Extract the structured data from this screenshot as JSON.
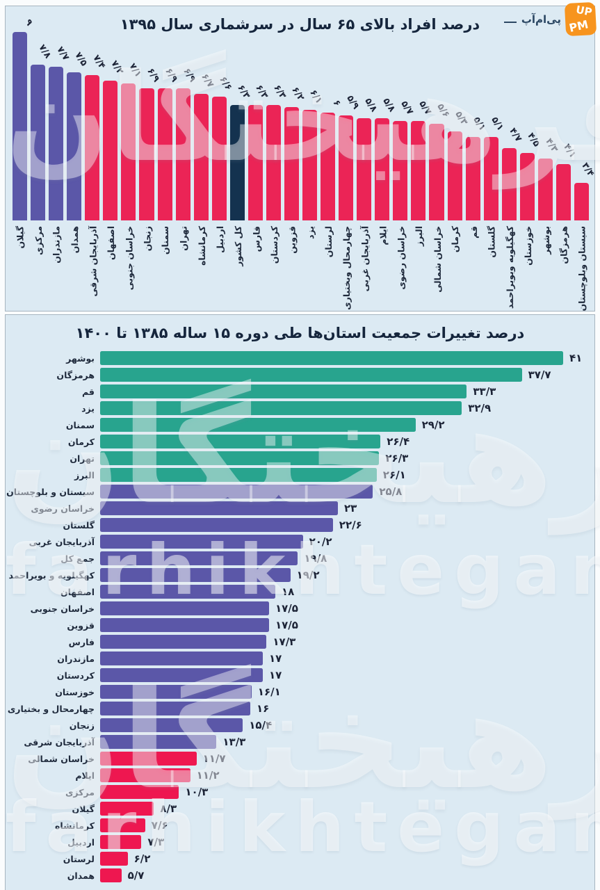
{
  "logo": {
    "badge_top": "UP",
    "badge_bottom": "PM",
    "brand": "پی‌ام‌آپ"
  },
  "watermark": {
    "fa": "فرهیختگان",
    "en": "farhikhtegan"
  },
  "colors": {
    "purple": "#5B57A8",
    "red_top": "#EB2456",
    "navy": "#14324F",
    "teal": "#28A48E",
    "red_bottom": "#EE1750",
    "panel_bg": "#dceaf3",
    "title_text": "#15253c"
  },
  "chart_data": [
    {
      "type": "bar",
      "orientation": "vertical",
      "title": "درصد افراد بالای ۶۵ سال در سرشماری سال ۱۳۹۵",
      "legend": "none",
      "grid": false,
      "axis_min": 2,
      "ylim": [
        2,
        9
      ],
      "categories": [
        "گیلان",
        "مرکزی",
        "مازندران",
        "همدان",
        "آذربایجان شرقی",
        "اصفهان",
        "خراسان جنوبی",
        "زنجان",
        "سمنان",
        "تهران",
        "کرمانشاه",
        "اردبیل",
        "کل کشور",
        "فارس",
        "کردستان",
        "قزوین",
        "یزد",
        "لرستان",
        "چهارمحال وبختیاری",
        "آذربایجان غربی",
        "ایلام",
        "خراسان رضوی",
        "البرز",
        "خراسان شمالی",
        "کرمان",
        "قم",
        "گلستان",
        "کهگیلویه وبویراحمد",
        "خوزستان",
        "بوشهر",
        "هرمزگان",
        "سیستان وبلوچستان"
      ],
      "values": [
        9,
        7.8,
        7.7,
        7.5,
        7.4,
        7.2,
        7.1,
        6.9,
        6.9,
        6.9,
        6.7,
        6.6,
        6.3,
        6.3,
        6.3,
        6.2,
        6.1,
        6,
        5.9,
        5.8,
        5.8,
        5.7,
        5.7,
        5.6,
        5.3,
        5.1,
        5.1,
        4.7,
        4.5,
        4.3,
        4.1,
        3.4
      ],
      "value_labels": [
        "۹",
        "۷/۸",
        "۷/۷",
        "۷/۵",
        "۷/۴",
        "۷/۲",
        "۷/۱",
        "۶/۹",
        "۶/۹",
        "۶/۹",
        "۶/۷",
        "۶/۶",
        "۶/۳",
        "۶/۳",
        "۶/۳",
        "۶/۲",
        "۶/۱",
        "۶",
        "۵/۹",
        "۵/۸",
        "۵/۸",
        "۵/۷",
        "۵/۷",
        "۵/۶",
        "۵/۳",
        "۵/۱",
        "۵/۱",
        "۴/۷",
        "۴/۵",
        "۴/۳",
        "۴/۱",
        "۳/۴"
      ],
      "bar_color_keys": [
        "purple",
        "purple",
        "purple",
        "purple",
        "red_top",
        "red_top",
        "red_top",
        "red_top",
        "red_top",
        "red_top",
        "red_top",
        "red_top",
        "navy",
        "red_top",
        "red_top",
        "red_top",
        "red_top",
        "red_top",
        "red_top",
        "red_top",
        "red_top",
        "red_top",
        "red_top",
        "red_top",
        "red_top",
        "red_top",
        "red_top",
        "red_top",
        "red_top",
        "red_top",
        "red_top",
        "red_top"
      ],
      "highlighted_category": "کل کشور"
    },
    {
      "type": "bar",
      "orientation": "horizontal",
      "title": "درصد تغییرات جمعیت استان‌ها طی دوره ۱۵ ساله ۱۳۸۵ تا ۱۴۰۰",
      "legend": "none",
      "grid": false,
      "axis_min": 4,
      "xlim": [
        4,
        41
      ],
      "categories": [
        "بوشهر",
        "هرمزگان",
        "قم",
        "یزد",
        "سمنان",
        "کرمان",
        "تهران",
        "البرز",
        "سیستان و بلوچستان",
        "خراسان رضوی",
        "گلستان",
        "آذربایجان غربی",
        "جمع کل",
        "کهگیلویه و بویراحمد",
        "اصفهان",
        "خراسان جنوبی",
        "قزوین",
        "فارس",
        "مازندران",
        "کردستان",
        "خوزستان",
        "چهارمحال و بختیاری",
        "زنجان",
        "آذربایجان شرقی",
        "خراسان شمالی",
        "ایلام",
        "مرکزی",
        "گیلان",
        "کرمانشاه",
        "اردبیل",
        "لرستان",
        "همدان"
      ],
      "values": [
        41,
        37.7,
        33.3,
        32.9,
        29.2,
        26.4,
        26.3,
        26.1,
        25.8,
        23,
        22.6,
        20.2,
        19.8,
        19.2,
        18,
        17.5,
        17.5,
        17.3,
        17,
        17,
        16.1,
        16,
        15.4,
        13.3,
        11.7,
        11.2,
        10.3,
        8.3,
        7.6,
        7.3,
        6.2,
        5.7
      ],
      "value_labels": [
        "۴۱",
        "۳۷/۷",
        "۳۳/۳",
        "۳۲/۹",
        "۲۹/۲",
        "۲۶/۴",
        "۲۶/۳",
        "۲۶/۱",
        "۲۵/۸",
        "۲۳",
        "۲۲/۶",
        "۲۰/۲",
        "۱۹/۸",
        "۱۹/۲",
        "۱۸",
        "۱۷/۵",
        "۱۷/۵",
        "۱۷/۳",
        "۱۷",
        "۱۷",
        "۱۶/۱",
        "۱۶",
        "۱۵/۴",
        "۱۳/۳",
        "۱۱/۷",
        "۱۱/۲",
        "۱۰/۳",
        "۸/۳",
        "۷/۶",
        "۷/۳",
        "۶/۲",
        "۵/۷"
      ],
      "bar_color_keys": [
        "teal",
        "teal",
        "teal",
        "teal",
        "teal",
        "teal",
        "teal",
        "teal",
        "purple",
        "purple",
        "purple",
        "purple",
        "purple",
        "purple",
        "purple",
        "purple",
        "purple",
        "purple",
        "purple",
        "purple",
        "purple",
        "purple",
        "purple",
        "purple",
        "red_bottom",
        "red_bottom",
        "red_bottom",
        "red_bottom",
        "red_bottom",
        "red_bottom",
        "red_bottom",
        "red_bottom"
      ]
    }
  ]
}
